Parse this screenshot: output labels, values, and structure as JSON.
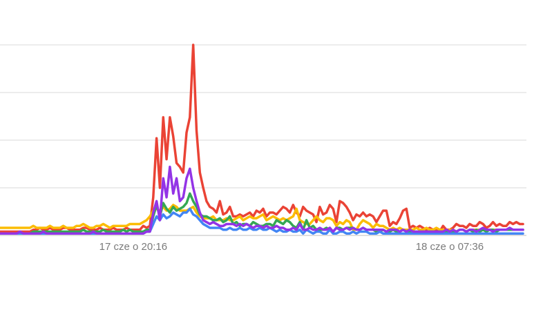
{
  "chart_data": {
    "type": "line",
    "title": "",
    "xlabel": "",
    "ylabel": "",
    "ylim": [
      0,
      100
    ],
    "y_ticks": [
      0,
      25,
      50,
      75,
      100
    ],
    "y_tick_labels_shown": false,
    "grid": true,
    "legend": "none",
    "x_ticks": [
      {
        "index": 40,
        "label": "17 cze o 20:16"
      },
      {
        "index": 135,
        "label": "18 cze o 07:36"
      }
    ],
    "x_count": 158,
    "series": [
      {
        "color": "#ea4335",
        "values": [
          2,
          2,
          2,
          2,
          2,
          2,
          2,
          2,
          2,
          2,
          3,
          3,
          4,
          3,
          3,
          4,
          3,
          3,
          3,
          4,
          4,
          3,
          3,
          3,
          3,
          4,
          4,
          3,
          3,
          3,
          4,
          3,
          3,
          3,
          4,
          3,
          3,
          3,
          4,
          3,
          3,
          3,
          3,
          5,
          4,
          5,
          20,
          51,
          25,
          62,
          40,
          62,
          52,
          38,
          36,
          33,
          54,
          62,
          100,
          55,
          33,
          25,
          18,
          15,
          14,
          12,
          18,
          11,
          12,
          15,
          10,
          10,
          11,
          10,
          11,
          12,
          10,
          13,
          12,
          14,
          10,
          12,
          12,
          11,
          13,
          15,
          14,
          12,
          16,
          12,
          10,
          15,
          13,
          12,
          11,
          7,
          15,
          11,
          12,
          16,
          14,
          7,
          18,
          17,
          15,
          12,
          8,
          11,
          10,
          12,
          10,
          11,
          10,
          7,
          10,
          13,
          13,
          5,
          7,
          6,
          9,
          13,
          14,
          4,
          5,
          4,
          5,
          4,
          3,
          4,
          3,
          3,
          2,
          5,
          3,
          3,
          4,
          6,
          5,
          5,
          4,
          6,
          5,
          5,
          7,
          6,
          4,
          5,
          7,
          5,
          6,
          5,
          5,
          7,
          6,
          7,
          6,
          6
        ]
      },
      {
        "color": "#fbbc04",
        "values": [
          4,
          4,
          4,
          4,
          4,
          4,
          4,
          4,
          4,
          4,
          5,
          4,
          4,
          4,
          4,
          5,
          4,
          4,
          4,
          5,
          4,
          4,
          4,
          5,
          5,
          6,
          5,
          4,
          4,
          5,
          5,
          6,
          5,
          4,
          5,
          5,
          5,
          5,
          5,
          6,
          6,
          6,
          6,
          7,
          8,
          10,
          13,
          14,
          13,
          15,
          13,
          14,
          16,
          15,
          13,
          13,
          13,
          14,
          15,
          12,
          10,
          9,
          9,
          9,
          10,
          8,
          8,
          8,
          9,
          8,
          8,
          9,
          10,
          8,
          9,
          10,
          9,
          9,
          10,
          11,
          8,
          9,
          10,
          9,
          8,
          9,
          8,
          9,
          10,
          14,
          8,
          7,
          6,
          6,
          8,
          10,
          8,
          7,
          9,
          9,
          8,
          5,
          7,
          6,
          8,
          7,
          3,
          3,
          6,
          8,
          7,
          6,
          4,
          6,
          5,
          5,
          4,
          3,
          4,
          3,
          4,
          3,
          3,
          3,
          3,
          4,
          3,
          3,
          4,
          3,
          3,
          4,
          3,
          3,
          2,
          3,
          3,
          2,
          3,
          3,
          2,
          3,
          3,
          3,
          3,
          3,
          3,
          3,
          3,
          3,
          3,
          3,
          3,
          3,
          3,
          3,
          3,
          3
        ]
      },
      {
        "color": "#34a853",
        "values": [
          1,
          1,
          1,
          1,
          1,
          1,
          1,
          1,
          1,
          1,
          2,
          2,
          2,
          2,
          2,
          2,
          2,
          2,
          2,
          2,
          2,
          2,
          2,
          2,
          2,
          3,
          2,
          2,
          2,
          2,
          2,
          3,
          2,
          2,
          2,
          2,
          2,
          3,
          2,
          3,
          2,
          2,
          2,
          2,
          3,
          3,
          10,
          16,
          10,
          17,
          14,
          12,
          15,
          13,
          14,
          15,
          17,
          22,
          18,
          15,
          11,
          10,
          10,
          9,
          8,
          8,
          9,
          7,
          8,
          10,
          6,
          7,
          5,
          6,
          6,
          5,
          7,
          6,
          5,
          5,
          6,
          6,
          5,
          8,
          7,
          6,
          8,
          7,
          5,
          4,
          7,
          3,
          8,
          4,
          5,
          3,
          3,
          3,
          4,
          3,
          2,
          4,
          4,
          3,
          4,
          4,
          4,
          3,
          3,
          4,
          3,
          3,
          3,
          2,
          2,
          3,
          2,
          2,
          3,
          2,
          2,
          3,
          2,
          2,
          2,
          2,
          2,
          2,
          2,
          2,
          2,
          2,
          2,
          2,
          2,
          2,
          2,
          2,
          3,
          3,
          2,
          3,
          2,
          3,
          2,
          3,
          2,
          3,
          3,
          2,
          3,
          3,
          3,
          3,
          3,
          3,
          3,
          3
        ]
      },
      {
        "color": "#4285f4",
        "values": [
          1,
          1,
          1,
          1,
          1,
          1,
          1,
          1,
          1,
          1,
          1,
          1,
          1,
          1,
          1,
          1,
          1,
          1,
          1,
          1,
          1,
          1,
          1,
          1,
          1,
          1,
          1,
          1,
          1,
          1,
          1,
          1,
          1,
          1,
          1,
          1,
          1,
          1,
          1,
          1,
          1,
          1,
          1,
          1,
          2,
          2,
          6,
          10,
          8,
          11,
          9,
          10,
          12,
          11,
          10,
          12,
          12,
          14,
          11,
          10,
          8,
          6,
          5,
          4,
          4,
          4,
          4,
          3,
          3,
          4,
          3,
          3,
          4,
          3,
          3,
          4,
          3,
          3,
          4,
          3,
          3,
          4,
          3,
          2,
          3,
          2,
          2,
          3,
          2,
          2,
          3,
          1,
          3,
          2,
          1,
          2,
          2,
          1,
          1,
          3,
          1,
          1,
          2,
          2,
          1,
          1,
          2,
          1,
          2,
          2,
          2,
          1,
          1,
          1,
          2,
          1,
          1,
          1,
          1,
          1,
          1,
          1,
          1,
          1,
          1,
          1,
          1,
          1,
          1,
          1,
          1,
          1,
          1,
          1,
          1,
          1,
          1,
          1,
          1,
          1,
          1,
          1,
          1,
          1,
          1,
          1,
          1,
          1,
          1,
          1,
          1,
          1,
          1,
          1,
          1,
          1,
          1,
          1
        ]
      },
      {
        "color": "#9334e6",
        "values": [
          1,
          1,
          1,
          1,
          1,
          1,
          2,
          1,
          1,
          1,
          1,
          1,
          1,
          2,
          1,
          1,
          1,
          1,
          1,
          1,
          1,
          1,
          1,
          1,
          1,
          1,
          1,
          1,
          2,
          1,
          1,
          1,
          1,
          1,
          1,
          1,
          1,
          1,
          1,
          1,
          1,
          1,
          1,
          1,
          2,
          2,
          12,
          18,
          8,
          30,
          20,
          36,
          22,
          30,
          18,
          20,
          30,
          35,
          25,
          18,
          12,
          8,
          7,
          6,
          7,
          6,
          5,
          5,
          6,
          6,
          6,
          5,
          6,
          5,
          6,
          5,
          4,
          5,
          5,
          4,
          5,
          4,
          4,
          5,
          4,
          4,
          3,
          3,
          4,
          3,
          6,
          3,
          3,
          4,
          3,
          3,
          4,
          3,
          3,
          4,
          2,
          4,
          3,
          3,
          4,
          3,
          4,
          3,
          3,
          4,
          3,
          3,
          3,
          3,
          3,
          3,
          2,
          3,
          3,
          3,
          2,
          3,
          2,
          3,
          2,
          2,
          2,
          2,
          2,
          2,
          2,
          2,
          2,
          2,
          3,
          2,
          3,
          2,
          3,
          3,
          2,
          3,
          3,
          2,
          3,
          4,
          3,
          3,
          2,
          3,
          3,
          3,
          3,
          4,
          3,
          3,
          3,
          3
        ]
      }
    ]
  }
}
